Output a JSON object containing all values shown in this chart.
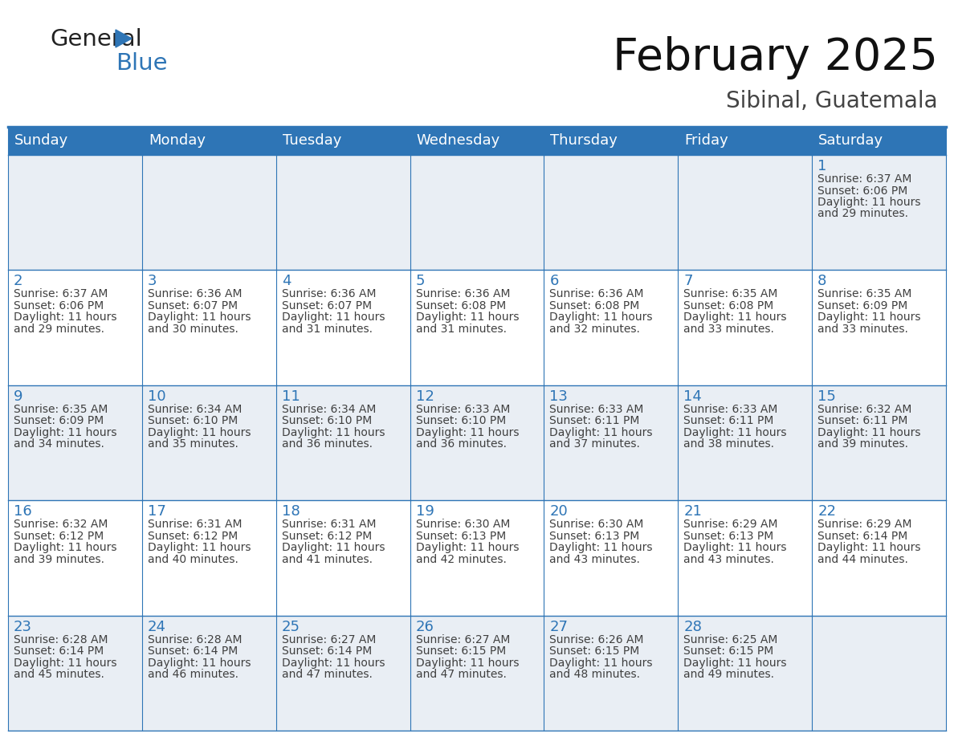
{
  "title": "February 2025",
  "subtitle": "Sibinal, Guatemala",
  "header_bg_color": "#2E75B6",
  "header_text_color": "#FFFFFF",
  "cell_bg_white": "#FFFFFF",
  "cell_bg_gray": "#E9EEF4",
  "day_headers": [
    "Sunday",
    "Monday",
    "Tuesday",
    "Wednesday",
    "Thursday",
    "Friday",
    "Saturday"
  ],
  "days": [
    {
      "day": 1,
      "col": 6,
      "row": 0,
      "sunrise": "6:37 AM",
      "sunset": "6:06 PM",
      "daylight": "11 hours and 29 minutes."
    },
    {
      "day": 2,
      "col": 0,
      "row": 1,
      "sunrise": "6:37 AM",
      "sunset": "6:06 PM",
      "daylight": "11 hours and 29 minutes."
    },
    {
      "day": 3,
      "col": 1,
      "row": 1,
      "sunrise": "6:36 AM",
      "sunset": "6:07 PM",
      "daylight": "11 hours and 30 minutes."
    },
    {
      "day": 4,
      "col": 2,
      "row": 1,
      "sunrise": "6:36 AM",
      "sunset": "6:07 PM",
      "daylight": "11 hours and 31 minutes."
    },
    {
      "day": 5,
      "col": 3,
      "row": 1,
      "sunrise": "6:36 AM",
      "sunset": "6:08 PM",
      "daylight": "11 hours and 31 minutes."
    },
    {
      "day": 6,
      "col": 4,
      "row": 1,
      "sunrise": "6:36 AM",
      "sunset": "6:08 PM",
      "daylight": "11 hours and 32 minutes."
    },
    {
      "day": 7,
      "col": 5,
      "row": 1,
      "sunrise": "6:35 AM",
      "sunset": "6:08 PM",
      "daylight": "11 hours and 33 minutes."
    },
    {
      "day": 8,
      "col": 6,
      "row": 1,
      "sunrise": "6:35 AM",
      "sunset": "6:09 PM",
      "daylight": "11 hours and 33 minutes."
    },
    {
      "day": 9,
      "col": 0,
      "row": 2,
      "sunrise": "6:35 AM",
      "sunset": "6:09 PM",
      "daylight": "11 hours and 34 minutes."
    },
    {
      "day": 10,
      "col": 1,
      "row": 2,
      "sunrise": "6:34 AM",
      "sunset": "6:10 PM",
      "daylight": "11 hours and 35 minutes."
    },
    {
      "day": 11,
      "col": 2,
      "row": 2,
      "sunrise": "6:34 AM",
      "sunset": "6:10 PM",
      "daylight": "11 hours and 36 minutes."
    },
    {
      "day": 12,
      "col": 3,
      "row": 2,
      "sunrise": "6:33 AM",
      "sunset": "6:10 PM",
      "daylight": "11 hours and 36 minutes."
    },
    {
      "day": 13,
      "col": 4,
      "row": 2,
      "sunrise": "6:33 AM",
      "sunset": "6:11 PM",
      "daylight": "11 hours and 37 minutes."
    },
    {
      "day": 14,
      "col": 5,
      "row": 2,
      "sunrise": "6:33 AM",
      "sunset": "6:11 PM",
      "daylight": "11 hours and 38 minutes."
    },
    {
      "day": 15,
      "col": 6,
      "row": 2,
      "sunrise": "6:32 AM",
      "sunset": "6:11 PM",
      "daylight": "11 hours and 39 minutes."
    },
    {
      "day": 16,
      "col": 0,
      "row": 3,
      "sunrise": "6:32 AM",
      "sunset": "6:12 PM",
      "daylight": "11 hours and 39 minutes."
    },
    {
      "day": 17,
      "col": 1,
      "row": 3,
      "sunrise": "6:31 AM",
      "sunset": "6:12 PM",
      "daylight": "11 hours and 40 minutes."
    },
    {
      "day": 18,
      "col": 2,
      "row": 3,
      "sunrise": "6:31 AM",
      "sunset": "6:12 PM",
      "daylight": "11 hours and 41 minutes."
    },
    {
      "day": 19,
      "col": 3,
      "row": 3,
      "sunrise": "6:30 AM",
      "sunset": "6:13 PM",
      "daylight": "11 hours and 42 minutes."
    },
    {
      "day": 20,
      "col": 4,
      "row": 3,
      "sunrise": "6:30 AM",
      "sunset": "6:13 PM",
      "daylight": "11 hours and 43 minutes."
    },
    {
      "day": 21,
      "col": 5,
      "row": 3,
      "sunrise": "6:29 AM",
      "sunset": "6:13 PM",
      "daylight": "11 hours and 43 minutes."
    },
    {
      "day": 22,
      "col": 6,
      "row": 3,
      "sunrise": "6:29 AM",
      "sunset": "6:14 PM",
      "daylight": "11 hours and 44 minutes."
    },
    {
      "day": 23,
      "col": 0,
      "row": 4,
      "sunrise": "6:28 AM",
      "sunset": "6:14 PM",
      "daylight": "11 hours and 45 minutes."
    },
    {
      "day": 24,
      "col": 1,
      "row": 4,
      "sunrise": "6:28 AM",
      "sunset": "6:14 PM",
      "daylight": "11 hours and 46 minutes."
    },
    {
      "day": 25,
      "col": 2,
      "row": 4,
      "sunrise": "6:27 AM",
      "sunset": "6:14 PM",
      "daylight": "11 hours and 47 minutes."
    },
    {
      "day": 26,
      "col": 3,
      "row": 4,
      "sunrise": "6:27 AM",
      "sunset": "6:15 PM",
      "daylight": "11 hours and 47 minutes."
    },
    {
      "day": 27,
      "col": 4,
      "row": 4,
      "sunrise": "6:26 AM",
      "sunset": "6:15 PM",
      "daylight": "11 hours and 48 minutes."
    },
    {
      "day": 28,
      "col": 5,
      "row": 4,
      "sunrise": "6:25 AM",
      "sunset": "6:15 PM",
      "daylight": "11 hours and 49 minutes."
    }
  ],
  "num_rows": 5,
  "num_cols": 7,
  "line_color": "#2E75B6",
  "day_num_color": "#2E75B6",
  "text_color": "#404040",
  "bg_color": "#FFFFFF",
  "title_fontsize": 40,
  "subtitle_fontsize": 20,
  "header_fontsize": 13,
  "day_num_fontsize": 13,
  "cell_fontsize": 10
}
